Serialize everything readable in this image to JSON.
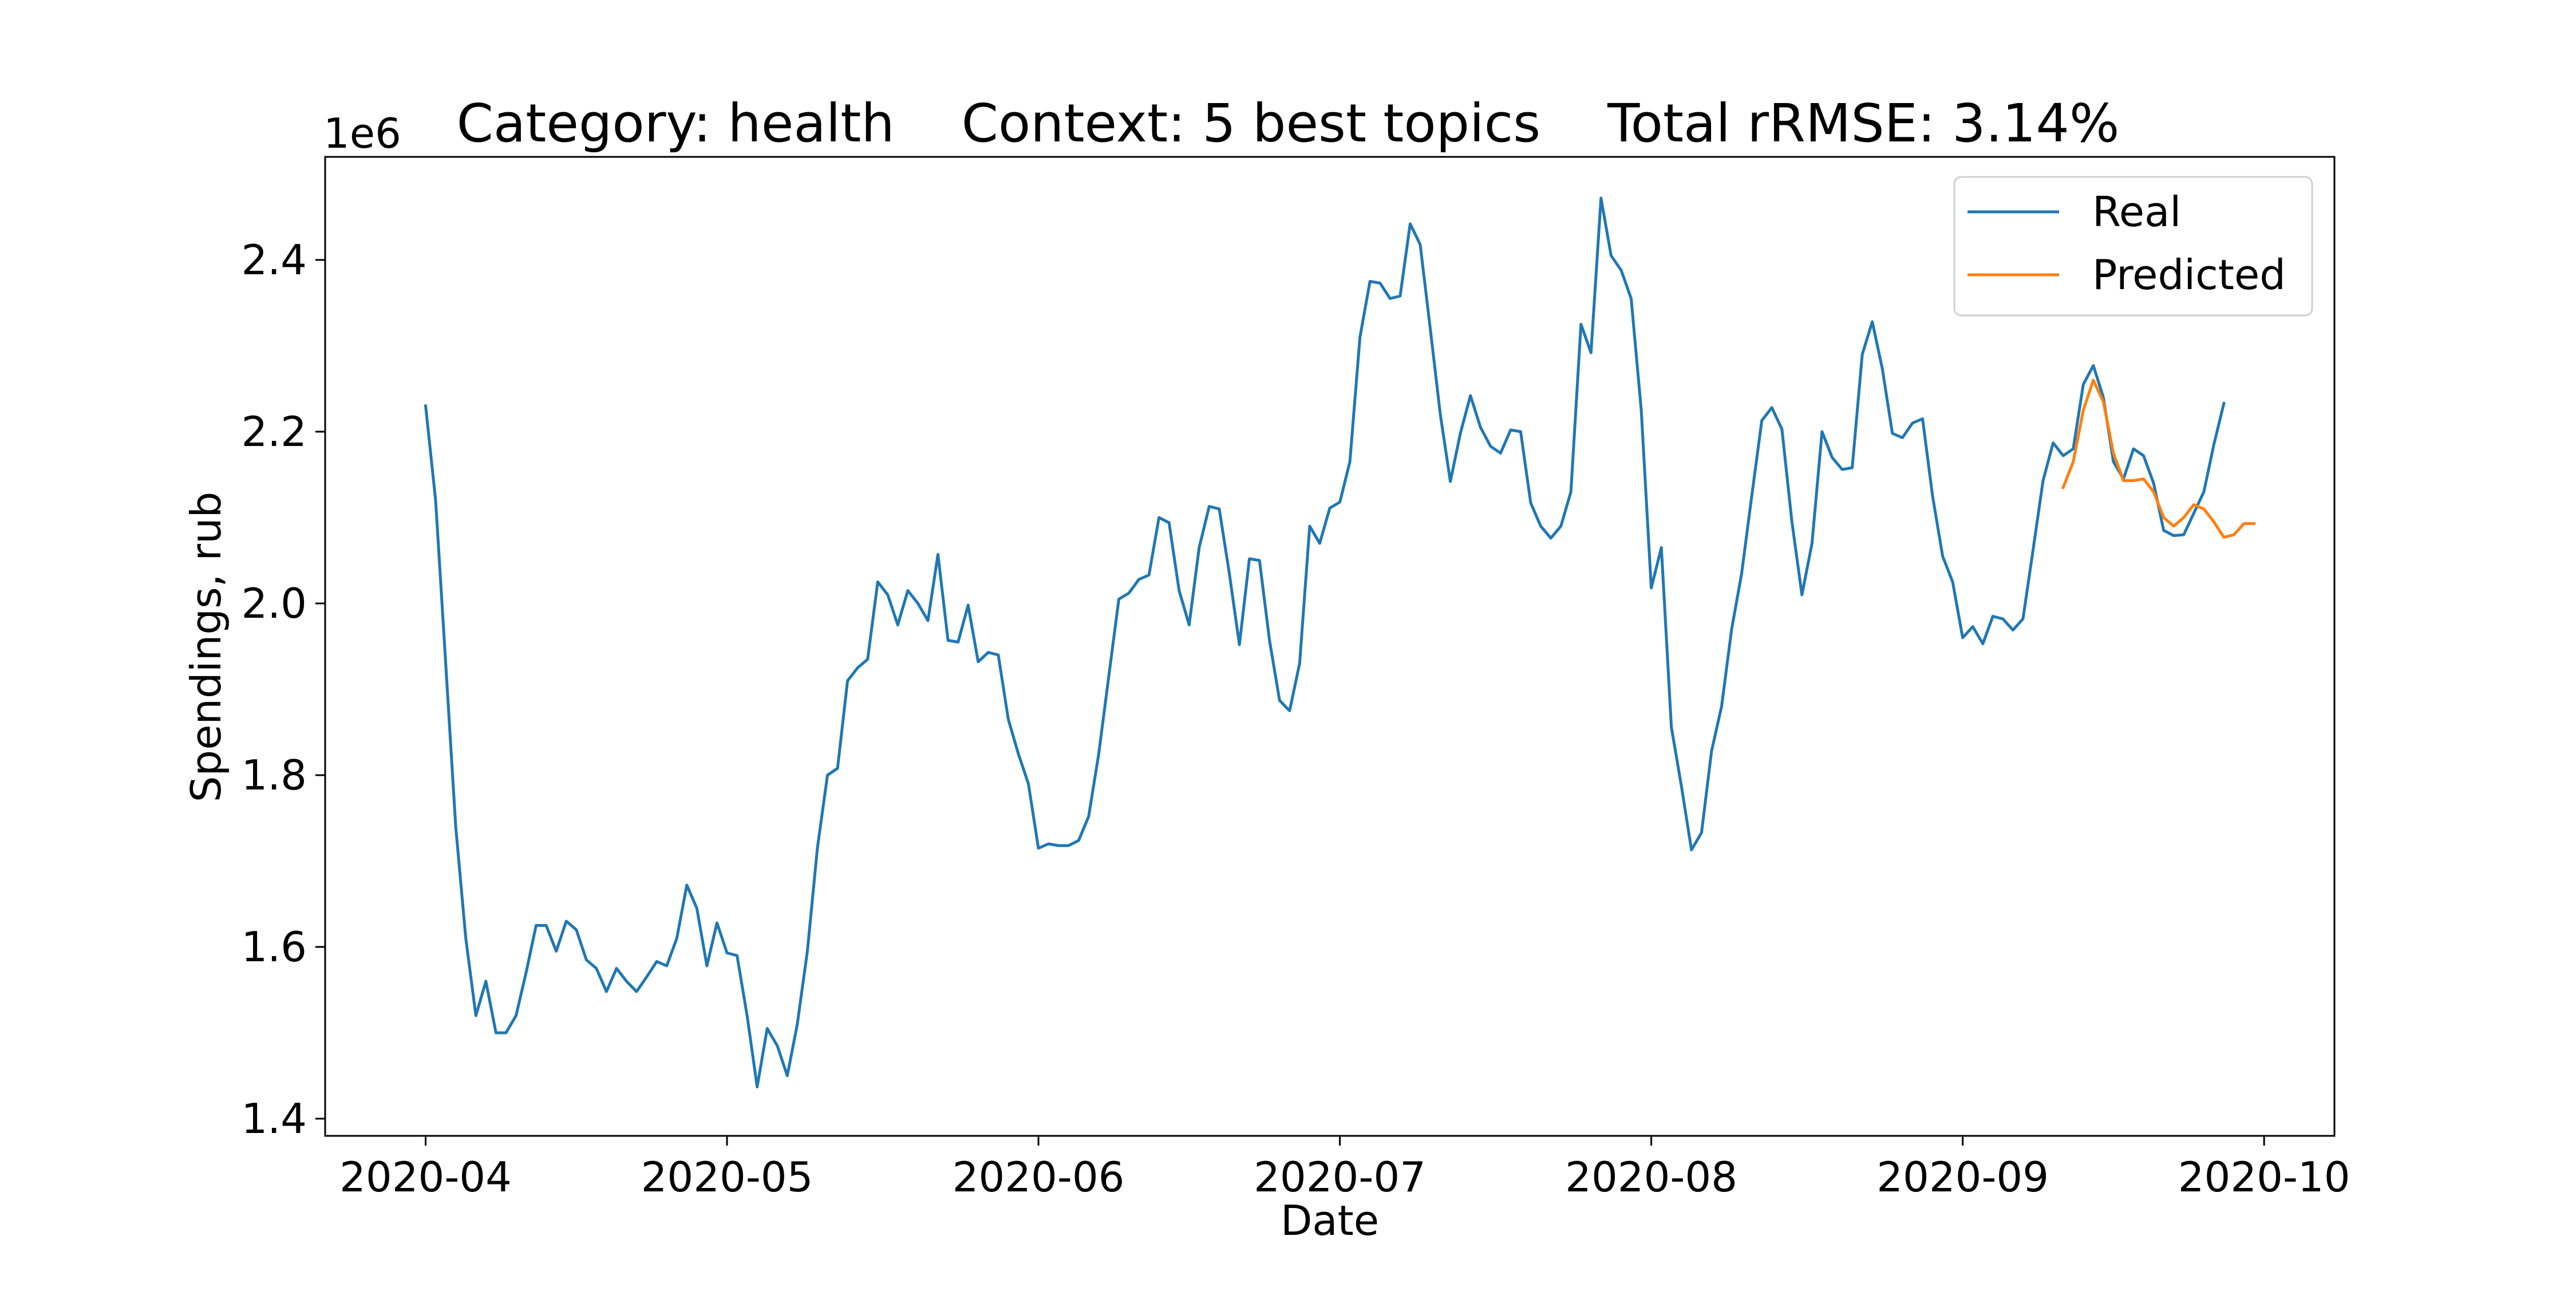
{
  "chart_data": {
    "type": "line",
    "title": "Category: health    Context: 5 best topics    Total rRMSE: 3.14%",
    "xlabel": "Date",
    "ylabel": "Spendings, rub",
    "y_scale_label": "1e6",
    "y_scale_factor": 1000000,
    "xlim": [
      "2020-03-22",
      "2020-10-08"
    ],
    "ylim": [
      1.38,
      2.52
    ],
    "x_ticks": [
      "2020-04",
      "2020-05",
      "2020-06",
      "2020-07",
      "2020-08",
      "2020-09",
      "2020-10"
    ],
    "y_ticks": [
      "1.4",
      "1.6",
      "1.8",
      "2.0",
      "2.2",
      "2.4"
    ],
    "y_tick_values": [
      1.4,
      1.6,
      1.8,
      2.0,
      2.2,
      2.4
    ],
    "grid": false,
    "legend_position": "top-right",
    "series": [
      {
        "name": "Real",
        "color": "#1f77b4",
        "start_date": "2020-04-01",
        "values": [
          2.23,
          2.12,
          1.93,
          1.74,
          1.61,
          1.52,
          1.56,
          1.5,
          1.5,
          1.52,
          1.57,
          1.625,
          1.625,
          1.595,
          1.63,
          1.62,
          1.585,
          1.575,
          1.548,
          1.575,
          1.56,
          1.548,
          1.565,
          1.583,
          1.578,
          1.61,
          1.672,
          1.645,
          1.578,
          1.628,
          1.593,
          1.59,
          1.52,
          1.437,
          1.505,
          1.485,
          1.45,
          1.51,
          1.595,
          1.715,
          1.8,
          1.808,
          1.91,
          1.925,
          1.935,
          2.025,
          2.01,
          1.975,
          2.015,
          2.0,
          1.98,
          2.057,
          1.957,
          1.955,
          1.998,
          1.932,
          1.943,
          1.94,
          1.865,
          1.825,
          1.79,
          1.715,
          1.72,
          1.718,
          1.718,
          1.724,
          1.752,
          1.825,
          1.915,
          2.005,
          2.012,
          2.028,
          2.033,
          2.1,
          2.094,
          2.015,
          1.975,
          2.065,
          2.113,
          2.11,
          2.035,
          1.952,
          2.052,
          2.05,
          1.957,
          1.887,
          1.875,
          1.93,
          2.09,
          2.07,
          2.111,
          2.118,
          2.165,
          2.31,
          2.375,
          2.373,
          2.355,
          2.358,
          2.442,
          2.418,
          2.32,
          2.22,
          2.142,
          2.198,
          2.242,
          2.205,
          2.183,
          2.175,
          2.202,
          2.2,
          2.117,
          2.09,
          2.076,
          2.09,
          2.13,
          2.325,
          2.292,
          2.472,
          2.405,
          2.388,
          2.355,
          2.225,
          2.018,
          2.065,
          1.856,
          1.787,
          1.713,
          1.733,
          1.828,
          1.88,
          1.97,
          2.035,
          2.125,
          2.213,
          2.228,
          2.203,
          2.095,
          2.01,
          2.07,
          2.2,
          2.17,
          2.156,
          2.158,
          2.29,
          2.328,
          2.273,
          2.198,
          2.193,
          2.21,
          2.215,
          2.125,
          2.055,
          2.025,
          1.96,
          1.973,
          1.953,
          1.985,
          1.982,
          1.969,
          1.982,
          2.062,
          2.143,
          2.187,
          2.172,
          2.18,
          2.255,
          2.277,
          2.24,
          2.165,
          2.145,
          2.18,
          2.172,
          2.14,
          2.085,
          2.079,
          2.08,
          2.105,
          2.13,
          2.185,
          2.233
        ]
      },
      {
        "name": "Predicted",
        "color": "#ff7f0e",
        "start_date": "2020-09-11",
        "values": [
          2.135,
          2.165,
          2.225,
          2.26,
          2.235,
          2.175,
          2.143,
          2.143,
          2.145,
          2.13,
          2.1,
          2.09,
          2.1,
          2.115,
          2.11,
          2.095,
          2.077,
          2.08,
          2.093,
          2.093
        ]
      }
    ]
  }
}
